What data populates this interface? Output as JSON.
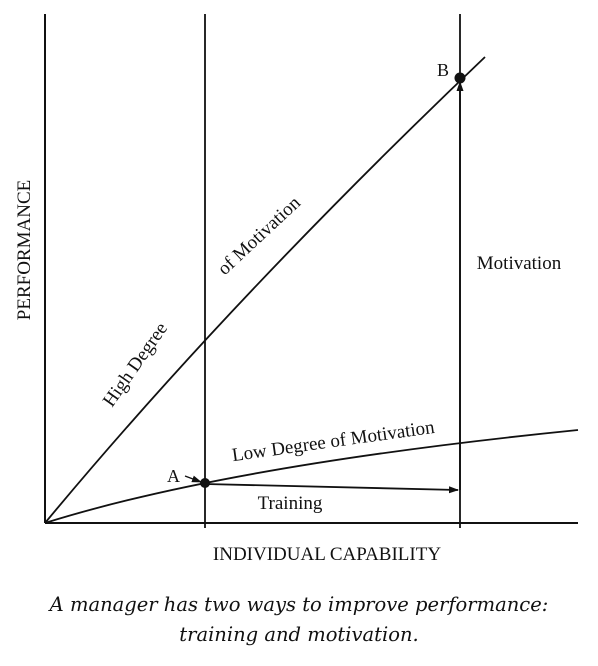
{
  "diagram": {
    "y_axis_label": "PERFORMANCE",
    "x_axis_label": "INDIVIDUAL CAPABILITY",
    "curves": {
      "high": "High Degree",
      "high_cont": "of Motivation",
      "low": "Low Degree of Motivation"
    },
    "points": {
      "a": "A",
      "b": "B"
    },
    "arrows": {
      "training": "Training",
      "motivation": "Motivation"
    }
  },
  "caption": {
    "line1": "A manager has two ways to improve performance:",
    "line2": "training and motivation."
  },
  "colors": {
    "ink": "#111111",
    "background": "#ffffff"
  }
}
